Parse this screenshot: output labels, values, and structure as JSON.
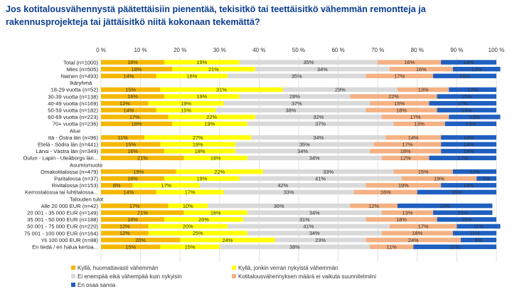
{
  "title": "Jos kotitalousvähennystä päätettäisiin pienentää, tekisitkö tai teettäisitkö vähemmän remontteja ja rakennusprojekteja tai jättäisitkö niitä kokonaan tekemättä?",
  "colors": {
    "bg": "#ffffff",
    "title": "#0b3d91",
    "grid": "#d9d9d9",
    "series": [
      "#f5b800",
      "#ffff00",
      "#d9d9d9",
      "#f4b183",
      "#1f5fbf"
    ]
  },
  "chart_data": {
    "type": "bar",
    "orientation": "horizontal",
    "stacked": true,
    "xlim": [
      0,
      100
    ],
    "x_ticks": [
      "0 %",
      "10 %",
      "20 %",
      "30 %",
      "40 %",
      "50 %",
      "60 %",
      "70 %",
      "80 %",
      "90 %",
      "100 %"
    ],
    "grid": true,
    "legend_position": "bottom",
    "series_names": [
      "Kyllä, huomattavasti vähemmän",
      "Kyllä, jonkin verran nykyistä vähemmän",
      "Ei enempää eikä vähempää kuin nykyisin",
      "Kotitalousvähennyksen määrä ei vaikuta suunnitelmiini",
      "En osaa sanoa"
    ],
    "rows": [
      {
        "label": "Total (n=1000)",
        "values": [
          16,
          19,
          35,
          16,
          14
        ]
      },
      {
        "label": "Mies (n=505)",
        "values": [
          18,
          21,
          34,
          16,
          12
        ]
      },
      {
        "label": "Nainen (n=493)",
        "values": [
          14,
          18,
          35,
          17,
          16
        ]
      },
      {
        "label": "Ikäryhmä",
        "header": true
      },
      {
        "label": "18-29 vuotta (n=52)",
        "values": [
          15,
          31,
          29,
          13,
          12
        ]
      },
      {
        "label": "30-39 vuotta (n=138)",
        "values": [
          16,
          19,
          28,
          22,
          15
        ]
      },
      {
        "label": "40-49 vuotta (n=169)",
        "values": [
          12,
          19,
          37,
          15,
          17
        ]
      },
      {
        "label": "50-59 vuotta (n=182)",
        "values": [
          14,
          15,
          38,
          18,
          15
        ]
      },
      {
        "label": "60-69 vuotta (n=223)",
        "values": [
          17,
          22,
          32,
          17,
          13
        ]
      },
      {
        "label": "70+ vuotta (n=236)",
        "values": [
          18,
          19,
          37,
          13,
          13
        ]
      },
      {
        "label": "Alue",
        "header": true
      },
      {
        "label": "Itä - Östra län (n=96)",
        "values": [
          11,
          27,
          34,
          14,
          14
        ]
      },
      {
        "label": "Etelä - Södra län (n=441)",
        "values": [
          15,
          19,
          35,
          17,
          14
        ]
      },
      {
        "label": "Länsi - Västra län (n=349)",
        "values": [
          16,
          18,
          34,
          18,
          14
        ]
      },
      {
        "label": "Oulun - Lapin - Uleåborgs län...",
        "values": [
          21,
          16,
          34,
          12,
          17
        ]
      },
      {
        "label": "Asumismuoto",
        "header": true
      },
      {
        "label": "Omakotitalossa (n=479)",
        "values": [
          19,
          22,
          33,
          15,
          11
        ]
      },
      {
        "label": "Paritalossa (n=37)",
        "values": [
          16,
          19,
          41,
          19,
          5
        ]
      },
      {
        "label": "Rivitalossa (n=153)",
        "values": [
          8,
          17,
          42,
          19,
          14
        ]
      },
      {
        "label": "Kerrostalossa tai luhtitalossa...",
        "values": [
          14,
          17,
          33,
          16,
          20
        ]
      },
      {
        "label": "Talouden tulot",
        "header": true
      },
      {
        "label": "Alle 20 000 EUR (n=42)",
        "values": [
          17,
          10,
          36,
          12,
          24
        ]
      },
      {
        "label": "20 001 - 35 000 EUR (n=149)",
        "values": [
          21,
          16,
          34,
          13,
          15
        ]
      },
      {
        "label": "35 001 - 50 000 EUR (n=188)",
        "values": [
          16,
          20,
          31,
          18,
          15
        ]
      },
      {
        "label": "50 001 - 75 000 EUR (n=220)",
        "values": [
          12,
          20,
          41,
          17,
          11
        ]
      },
      {
        "label": "75 001 - 100 000 EUR (n=164)",
        "values": [
          12,
          25,
          34,
          18,
          11
        ]
      },
      {
        "label": "Yli 100 000 EUR (n=88)",
        "values": [
          20,
          24,
          23,
          24,
          9
        ]
      },
      {
        "label": "En tiedä / en halua kertoa...",
        "values": [
          15,
          15,
          38,
          11,
          21
        ]
      }
    ]
  }
}
